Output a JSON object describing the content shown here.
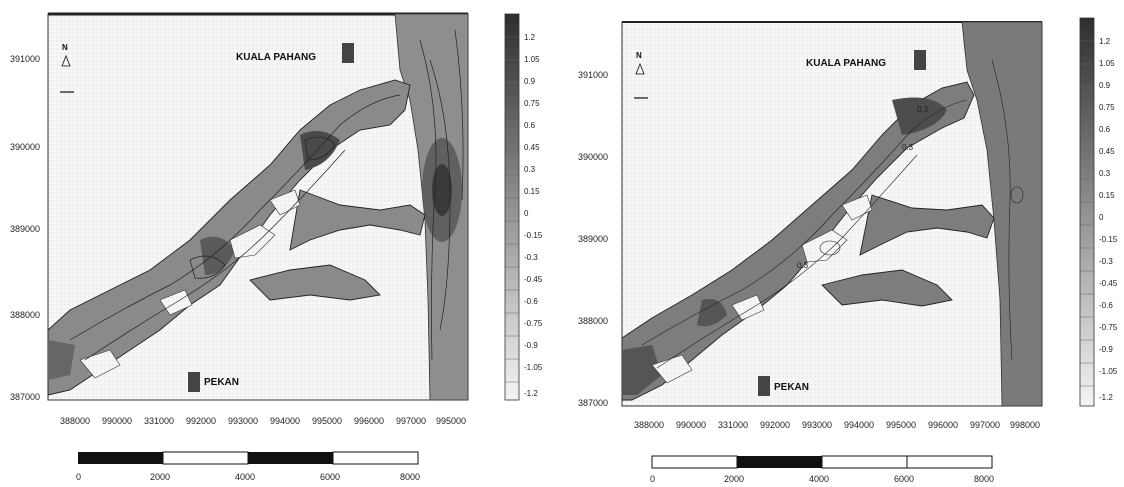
{
  "colors": {
    "land": "#f4f4f4",
    "river_fill": "#8a8a8a",
    "river_dark": "#5a5a5a",
    "contour": "#222222",
    "legend_top": "#3a3a3a",
    "legend_bottom": "#f2f2f2"
  },
  "maps": [
    {
      "north_letter": "N",
      "places": [
        {
          "name": "KUALA PAHANG"
        },
        {
          "name": "PEKAN"
        }
      ],
      "y_ticks": [
        "391000",
        "390000",
        "389000",
        "388000",
        "387000"
      ],
      "x_ticks": [
        "388000",
        "990000",
        "331000",
        "992000",
        "993000",
        "994000",
        "995000",
        "996000",
        "997000",
        "995000"
      ],
      "legend": [
        "1.2",
        "1.05",
        "0.9",
        "0.75",
        "0.6",
        "0.45",
        "0.3",
        "0.15",
        "0",
        "-0.15",
        "-0.3",
        "-0.45",
        "-0.6",
        "-0.75",
        "-0.9",
        "-1.05",
        "-1.2"
      ],
      "scale": [
        "0",
        "2000",
        "4000",
        "6000",
        "8000"
      ]
    },
    {
      "north_letter": "N",
      "places": [
        {
          "name": "KUALA PAHANG"
        },
        {
          "name": "PEKAN"
        }
      ],
      "contour_labels": [
        "0.3",
        "0.3",
        "0.3"
      ],
      "y_ticks": [
        "391000",
        "390000",
        "389000",
        "388000",
        "387000"
      ],
      "x_ticks": [
        "388000",
        "990000",
        "331000",
        "992000",
        "993000",
        "994000",
        "995000",
        "996000",
        "997000",
        "998000"
      ],
      "legend": [
        "1.2",
        "1.05",
        "0.9",
        "0.75",
        "0.6",
        "0.45",
        "0.3",
        "0.15",
        "0",
        "-0.15",
        "-0.3",
        "-0.45",
        "-0.6",
        "-0.75",
        "-0.9",
        "-1.05",
        "-1.2"
      ],
      "scale": [
        "0",
        "2000",
        "4000",
        "6000",
        "8000"
      ]
    }
  ]
}
